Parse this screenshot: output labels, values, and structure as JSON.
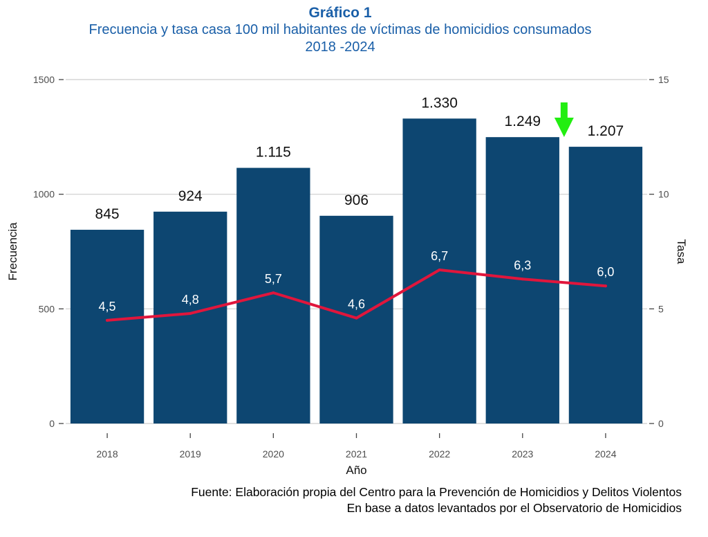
{
  "header": {
    "title": "Gráfico 1",
    "subtitle_line1": "Frecuencia y tasa casa 100 mil habitantes de víctimas de homicidios consumados",
    "subtitle_line2": "2018 -2024"
  },
  "chart_data": {
    "type": "bar",
    "categories": [
      "2018",
      "2019",
      "2020",
      "2021",
      "2022",
      "2023",
      "2024"
    ],
    "series": [
      {
        "type": "bar",
        "axis": "left",
        "values": [
          845,
          924,
          1115,
          906,
          1330,
          1249,
          1207
        ],
        "labels": [
          "845",
          "924",
          "1.115",
          "906",
          "1.330",
          "1.249",
          "1.207"
        ],
        "color": "#0d4671"
      },
      {
        "type": "line",
        "axis": "right",
        "values": [
          4.5,
          4.8,
          5.7,
          4.6,
          6.7,
          6.3,
          6.0
        ],
        "labels": [
          "4,5",
          "4,8",
          "5,7",
          "4,6",
          "6,7",
          "6,3",
          "6,0"
        ],
        "color": "#e0163c"
      }
    ],
    "xlabel": "Año",
    "ylabel": "Frecuencia",
    "y2label": "Tasa",
    "ylim": [
      0,
      1500
    ],
    "y2lim": [
      0,
      15
    ],
    "yticks": [
      0,
      500,
      1000,
      1500
    ],
    "y2ticks": [
      0,
      5,
      10,
      15
    ],
    "grid": true,
    "annotation": {
      "type": "arrow-down",
      "color": "#22ee11",
      "category_between": [
        "2023",
        "2024"
      ]
    }
  },
  "source": {
    "line1": "Fuente: Elaboración propia del Centro para la Prevención de Homicidios y Delitos Violentos",
    "line2": "En base a datos levantados por el Observatorio de Homicidios"
  }
}
